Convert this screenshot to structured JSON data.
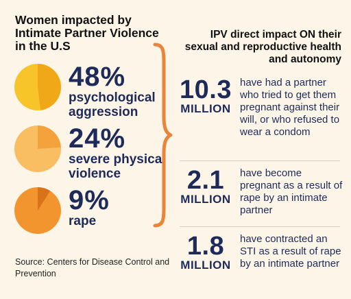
{
  "left": {
    "title": "Women impacted by Intimate Partner Violence in the U.S",
    "stats": [
      {
        "percent": "48%",
        "value": 48,
        "label": "psychological aggression",
        "color_light": "#f7c42a",
        "color_dark": "#f0a818"
      },
      {
        "percent": "24%",
        "value": 24,
        "label": "severe physical violence",
        "color_light": "#f9bd62",
        "color_dark": "#f4a23c"
      },
      {
        "percent": "9%",
        "value": 9,
        "label": "rape",
        "color_light": "#f3952f",
        "color_dark": "#d8731c"
      }
    ],
    "source": "Source: Centers for Disease Control and Prevention"
  },
  "right": {
    "title": "IPV direct impact ON their sexual and reproductive health and autonomy",
    "impacts": [
      {
        "number": "10.3",
        "unit": "MILLION",
        "text": "have had a partner who tried to get them pregnant against their will, or who refused to wear a condom"
      },
      {
        "number": "2.1",
        "unit": "MILLION",
        "text": "have become pregnant as a result of rape by an intimate partner"
      },
      {
        "number": "1.8",
        "unit": "MILLION",
        "text": "have contracted an STI as a result of rape by an intimate partner"
      }
    ]
  },
  "colors": {
    "background": "#fdf6e8",
    "navy": "#1d2a5a",
    "brace": "#e8853a"
  }
}
